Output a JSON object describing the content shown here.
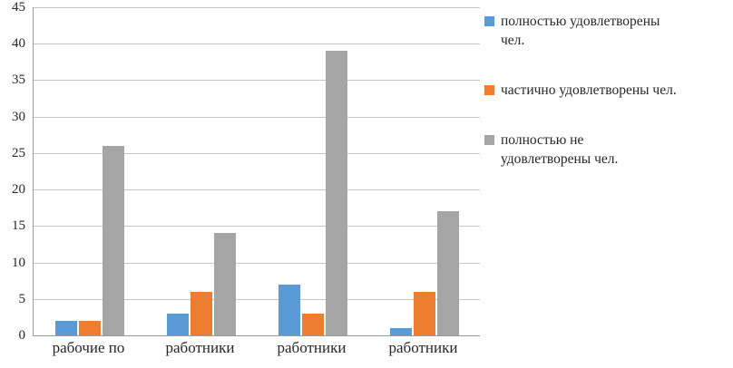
{
  "chart_data": {
    "type": "bar",
    "title": "",
    "categories": [
      "рабочие по",
      "работники",
      "работники",
      "работники"
    ],
    "series": [
      {
        "name": "полностью удовлетворены\nчел.",
        "color": "#5B9BD5",
        "values": [
          2,
          3,
          7,
          1
        ]
      },
      {
        "name": "частично удовлетворены чел.",
        "color": "#ED7D31",
        "values": [
          2,
          6,
          3,
          6
        ]
      },
      {
        "name": "полностью не\nудовлетворены чел.",
        "color": "#A5A5A5",
        "values": [
          26,
          14,
          39,
          17
        ]
      }
    ],
    "xlabel": "",
    "ylabel": "",
    "ylim": [
      0,
      45
    ],
    "ytick_step": 5,
    "grid": true,
    "legend_position": "right",
    "axis_color": "#9a9a9a",
    "gridline_color": "#c6c6c6"
  }
}
